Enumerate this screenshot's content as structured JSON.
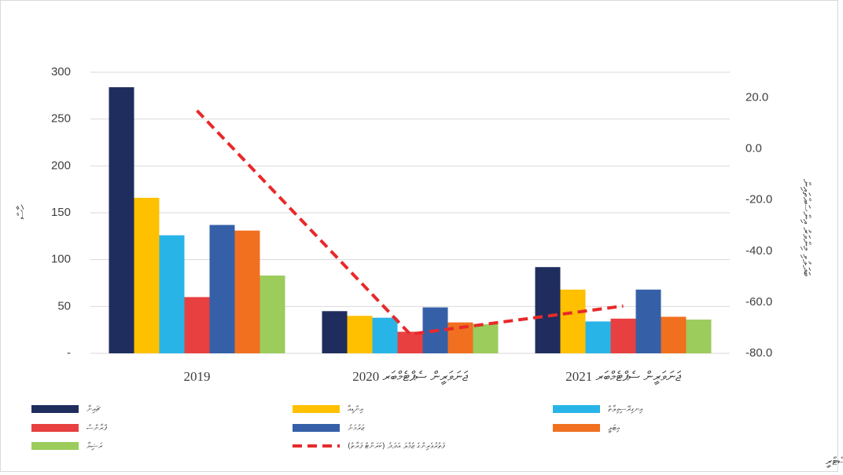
{
  "chart_data": {
    "type": "bar",
    "y_label": "ހާސް",
    "y2_label": "ބަދަލުވި މިންވަރު އިންސައްތައިން",
    "source": "މަޢުލޫމާތު: ޓޫރިޒަމް މިނިސްޓްރީ",
    "categories": [
      "2019",
      "ޖަނަވަރީން ސެޕްޓެމްބަރ 2020",
      "ޖަނަވަރީން ސެޕްޓެމްބަރ 2021"
    ],
    "series": [
      {
        "name": "ޗައިނާ",
        "color": "#1f2d5e",
        "values": [
          284,
          45,
          92
        ]
      },
      {
        "name": "އިންޑިއާ",
        "color": "#ffc000",
        "values": [
          166,
          40,
          68
        ]
      },
      {
        "name": "އިނގިރޭސިވިލާތް",
        "color": "#29b4e8",
        "values": [
          126,
          38,
          34
        ]
      },
      {
        "name": "ފްރާންސް",
        "color": "#e84040",
        "values": [
          60,
          23,
          37
        ]
      },
      {
        "name": "ޖަރުމަނު",
        "color": "#3560a8",
        "values": [
          137,
          49,
          68
        ]
      },
      {
        "name": "އިޓަލީ",
        "color": "#f07020",
        "values": [
          131,
          33,
          39
        ]
      },
      {
        "name": "ރަޝިޔާ",
        "color": "#9ccc5c",
        "values": [
          83,
          31,
          36
        ]
      },
      {
        "name": "ފަތުރުވެރިންގެ ޖުމްލަ އަދަދު (ކަރަންޓް ފަރާތު)",
        "color": "#e8292a",
        "values": [
          15,
          -72.5,
          -61.5
        ],
        "axis": "y2"
      }
    ],
    "ylim": [
      0,
      300
    ],
    "yticks": [
      {
        "value": 0,
        "label": "-"
      },
      50,
      100,
      150,
      200,
      250,
      300
    ],
    "y2lim": [
      -80,
      30
    ],
    "y2ticks": [
      {
        "value": -80,
        "label": "-80.0"
      },
      {
        "value": -60,
        "label": "-60.0"
      },
      {
        "value": -40,
        "label": "-40.0"
      },
      {
        "value": -20,
        "label": "-20.0"
      },
      {
        "value": 0,
        "label": "0.0"
      },
      {
        "value": 20,
        "label": "20.0"
      }
    ],
    "grid": true
  }
}
